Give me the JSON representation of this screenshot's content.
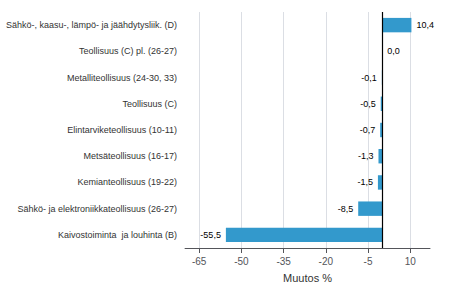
{
  "chart_data": {
    "type": "bar",
    "orientation": "horizontal",
    "categories": [
      "Sähkö-, kaasu-, lämpö- ja jäähdytysliik. (D)",
      "Teollisuus (C) pl. (26-27)",
      "Metalliteollisuus (24-30, 33)",
      "Teollisuus (C)",
      "Elintarviketeollisuus (10-11)",
      "Metsäteollisuus (16-17)",
      "Kemianteollisuus (19-22)",
      "Sähkö- ja elektroniikkateollisuus (26-27)",
      "Kaivostoiminta  ja louhinta (B)"
    ],
    "values": [
      10.4,
      0.0,
      -0.1,
      -0.5,
      -0.7,
      -1.3,
      -1.5,
      -8.5,
      -55.5
    ],
    "value_labels": [
      "10,4",
      "0,0",
      "-0,1",
      "-0,5",
      "-0,7",
      "-1,3",
      "-1,5",
      "-8,5",
      "-55,5"
    ],
    "data_labels": true,
    "color": "#3399cc",
    "xlabel": "Muutos %",
    "xlim": [
      -70,
      17
    ],
    "xticks": [
      -65,
      -50,
      -35,
      -20,
      -5,
      10
    ],
    "grid": true
  }
}
